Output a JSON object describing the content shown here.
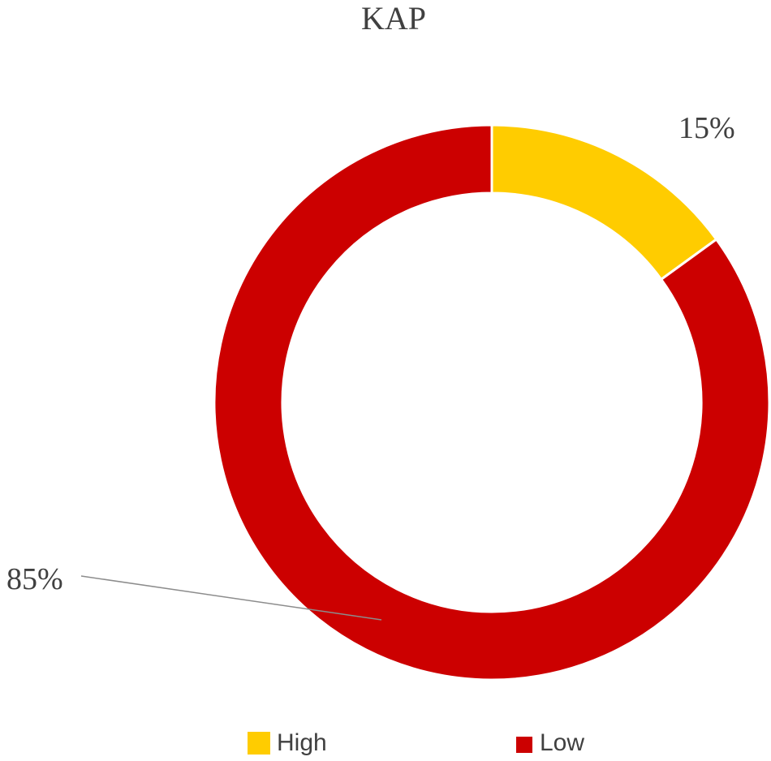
{
  "chart_data": {
    "type": "pie",
    "variant": "donut",
    "title": "KAP",
    "categories": [
      "High",
      "Low"
    ],
    "values": [
      15,
      85
    ],
    "unit": "%",
    "data_labels": [
      "15%",
      "85%"
    ],
    "colors": [
      "#FFCC00",
      "#CC0000"
    ],
    "legend": {
      "position": "bottom",
      "entries": [
        "High",
        "Low"
      ]
    }
  }
}
